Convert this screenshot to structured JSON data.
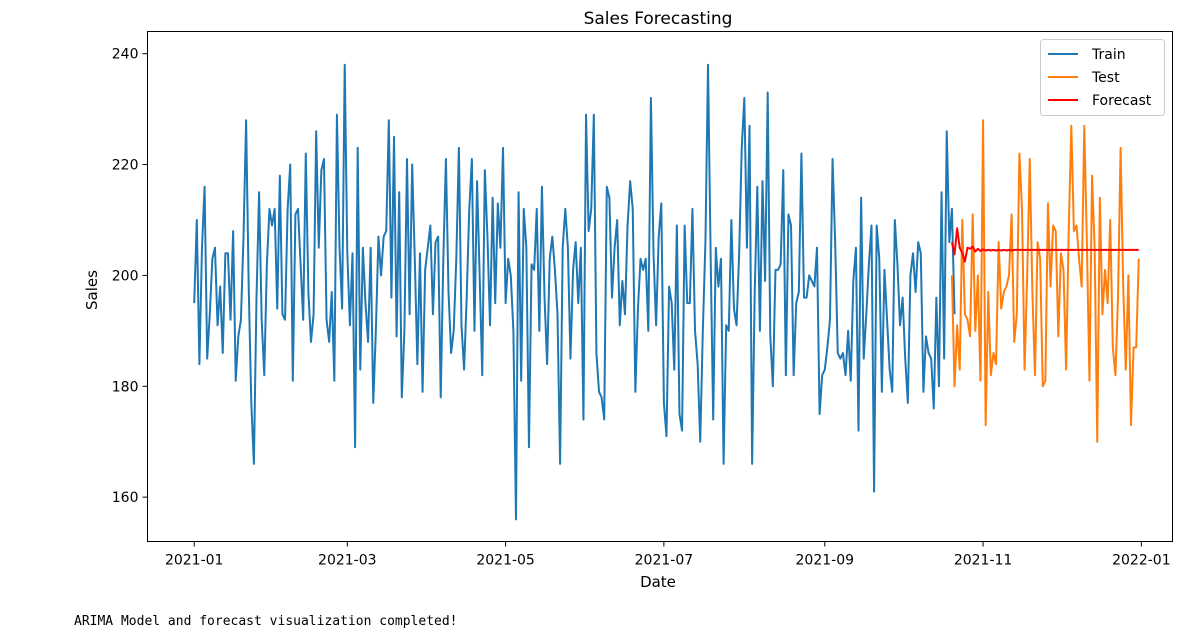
{
  "chart_data": {
    "type": "line",
    "title": "Sales Forecasting",
    "xlabel": "Date",
    "ylabel": "Sales",
    "xlim": [
      "2020-12-14",
      "2022-01-13"
    ],
    "ylim": [
      152,
      244
    ],
    "x_ticks": [
      "2021-01",
      "2021-03",
      "2021-05",
      "2021-07",
      "2021-09",
      "2021-11",
      "2022-01"
    ],
    "y_ticks": [
      160,
      180,
      200,
      220,
      240
    ],
    "legend_position": "top-right",
    "grid": false,
    "series": [
      {
        "name": "Train",
        "color": "#1f77b4",
        "start_date": "2021-01-01",
        "freq": "D",
        "values": [
          195,
          210,
          184,
          205,
          216,
          185,
          193,
          203,
          205,
          191,
          198,
          186,
          204,
          204,
          192,
          208,
          181,
          189,
          192,
          207,
          228,
          198,
          177,
          166,
          196,
          215,
          192,
          182,
          202,
          212,
          209,
          212,
          194,
          218,
          193,
          192,
          212,
          220,
          181,
          211,
          212,
          202,
          192,
          222,
          197,
          188,
          193,
          226,
          205,
          219,
          221,
          192,
          188,
          197,
          181,
          229,
          205,
          194,
          238,
          204,
          191,
          204,
          169,
          223,
          183,
          205,
          195,
          188,
          205,
          177,
          190,
          207,
          200,
          207,
          208,
          228,
          196,
          225,
          189,
          215,
          178,
          190,
          221,
          193,
          220,
          203,
          184,
          204,
          179,
          201,
          205,
          209,
          193,
          206,
          207,
          178,
          203,
          221,
          197,
          186,
          190,
          203,
          223,
          191,
          183,
          196,
          212,
          221,
          190,
          217,
          200,
          182,
          219,
          207,
          191,
          214,
          195,
          213,
          205,
          223,
          195,
          203,
          200,
          190,
          156,
          215,
          181,
          212,
          205,
          169,
          202,
          201,
          212,
          190,
          216,
          196,
          184,
          203,
          207,
          201,
          193,
          166,
          205,
          212,
          205,
          185,
          201,
          206,
          195,
          205,
          174,
          229,
          208,
          212,
          229,
          186,
          179,
          178,
          174,
          216,
          214,
          196,
          205,
          210,
          191,
          199,
          193,
          209,
          217,
          212,
          179,
          194,
          203,
          201,
          203,
          190,
          232,
          204,
          191,
          207,
          213,
          177,
          171,
          198,
          195,
          183,
          209,
          175,
          172,
          209,
          195,
          195,
          212,
          190,
          184,
          170,
          190,
          206,
          238,
          204,
          174,
          205,
          198,
          203,
          166,
          191,
          190,
          210,
          194,
          191,
          204,
          223,
          232,
          205,
          227,
          166,
          197,
          216,
          190,
          217,
          199,
          233,
          189,
          180,
          201,
          201,
          202,
          219,
          182,
          211,
          209,
          182,
          195,
          197,
          222,
          196,
          196,
          200,
          199,
          198,
          205,
          175,
          182,
          183,
          187,
          192,
          221,
          206,
          186,
          185,
          186,
          182,
          190,
          181,
          199,
          205,
          172,
          214,
          185,
          193,
          202,
          209,
          161,
          209,
          203,
          179,
          201,
          192,
          183,
          179,
          210,
          202,
          191,
          196,
          185,
          177,
          200,
          204,
          197,
          206,
          204,
          179,
          189,
          186,
          185,
          176,
          196,
          180,
          215,
          185,
          226,
          206,
          212,
          193
        ]
      },
      {
        "name": "Test",
        "color": "#ff7f0e",
        "start_date": "2021-10-20",
        "freq": "D",
        "values": [
          200,
          180,
          191,
          183,
          210,
          193,
          192,
          189,
          211,
          190,
          200,
          181,
          228,
          173,
          197,
          182,
          186,
          184,
          206,
          194,
          197,
          198,
          200,
          211,
          188,
          193,
          222,
          212,
          183,
          200,
          221,
          197,
          182,
          206,
          203,
          180,
          181,
          213,
          198,
          209,
          208,
          189,
          204,
          201,
          183,
          208,
          227,
          208,
          209,
          203,
          198,
          227,
          206,
          181,
          218,
          205,
          170,
          214,
          193,
          201,
          195,
          210,
          187,
          182,
          196,
          223,
          198,
          183,
          200,
          173,
          187,
          187,
          203
        ]
      },
      {
        "name": "Forecast",
        "color": "#ff0000",
        "start_date": "2021-10-20",
        "freq": "D",
        "values": [
          206.0,
          203.8,
          208.5,
          205.0,
          204.0,
          202.5,
          205.0,
          204.8,
          205.2,
          204.3,
          204.8,
          204.4,
          204.7,
          204.5,
          204.6,
          204.5,
          204.6,
          204.5,
          204.6,
          204.5,
          204.6,
          204.5,
          204.6,
          204.5,
          204.6,
          204.6,
          204.6,
          204.6,
          204.6,
          204.6,
          204.6,
          204.6,
          204.6,
          204.6,
          204.6,
          204.6,
          204.6,
          204.6,
          204.6,
          204.6,
          204.6,
          204.6,
          204.6,
          204.6,
          204.6,
          204.6,
          204.6,
          204.6,
          204.6,
          204.6,
          204.6,
          204.6,
          204.6,
          204.6,
          204.6,
          204.6,
          204.6,
          204.6,
          204.6,
          204.6,
          204.6,
          204.6,
          204.6,
          204.6,
          204.6,
          204.6,
          204.6,
          204.6,
          204.6,
          204.6,
          204.6,
          204.6,
          204.6
        ]
      }
    ]
  },
  "output": {
    "message": "ARIMA Model and forecast visualization completed!"
  }
}
